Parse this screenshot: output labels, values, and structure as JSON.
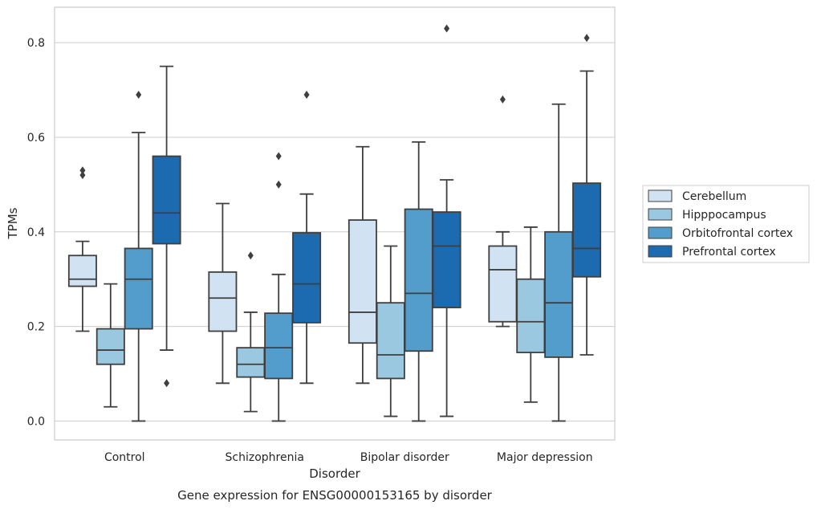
{
  "chart_data": {
    "type": "box",
    "caption": "Gene expression for ENSG00000153165 by disorder",
    "xlabel": "Disorder",
    "ylabel": "TPMs",
    "ylim": [
      -0.04,
      0.875
    ],
    "yticks": [
      "0.0",
      "0.2",
      "0.4",
      "0.6",
      "0.8"
    ],
    "grid": true,
    "legend_position": "right",
    "categories": [
      "Control",
      "Schizophrenia",
      "Bipolar disorder",
      "Major depression"
    ],
    "series": [
      {
        "name": "Cerebellum",
        "color": "#d1e2f2",
        "boxes": [
          {
            "whisker_low": 0.19,
            "q1": 0.285,
            "median": 0.3,
            "q3": 0.35,
            "whisker_high": 0.38,
            "outliers": [
              0.52,
              0.53
            ]
          },
          {
            "whisker_low": 0.08,
            "q1": 0.19,
            "median": 0.26,
            "q3": 0.315,
            "whisker_high": 0.46,
            "outliers": []
          },
          {
            "whisker_low": 0.08,
            "q1": 0.165,
            "median": 0.23,
            "q3": 0.425,
            "whisker_high": 0.58,
            "outliers": []
          },
          {
            "whisker_low": 0.2,
            "q1": 0.21,
            "median": 0.32,
            "q3": 0.37,
            "whisker_high": 0.4,
            "outliers": [
              0.68
            ]
          }
        ]
      },
      {
        "name": "Hipppocampus",
        "color": "#9ac8e0",
        "boxes": [
          {
            "whisker_low": 0.03,
            "q1": 0.12,
            "median": 0.15,
            "q3": 0.195,
            "whisker_high": 0.29,
            "outliers": []
          },
          {
            "whisker_low": 0.02,
            "q1": 0.093,
            "median": 0.12,
            "q3": 0.155,
            "whisker_high": 0.23,
            "outliers": [
              0.35
            ]
          },
          {
            "whisker_low": 0.01,
            "q1": 0.09,
            "median": 0.14,
            "q3": 0.25,
            "whisker_high": 0.37,
            "outliers": []
          },
          {
            "whisker_low": 0.04,
            "q1": 0.145,
            "median": 0.21,
            "q3": 0.3,
            "whisker_high": 0.41,
            "outliers": []
          }
        ]
      },
      {
        "name": "Orbitofrontal cortex",
        "color": "#529dcc",
        "boxes": [
          {
            "whisker_low": 0.0,
            "q1": 0.195,
            "median": 0.3,
            "q3": 0.365,
            "whisker_high": 0.61,
            "outliers": [
              0.69
            ]
          },
          {
            "whisker_low": 0.0,
            "q1": 0.09,
            "median": 0.155,
            "q3": 0.228,
            "whisker_high": 0.31,
            "outliers": [
              0.5,
              0.56
            ]
          },
          {
            "whisker_low": 0.0,
            "q1": 0.148,
            "median": 0.27,
            "q3": 0.448,
            "whisker_high": 0.59,
            "outliers": []
          },
          {
            "whisker_low": 0.0,
            "q1": 0.135,
            "median": 0.25,
            "q3": 0.4,
            "whisker_high": 0.67,
            "outliers": []
          }
        ]
      },
      {
        "name": "Prefrontal cortex",
        "color": "#1c6aaf",
        "boxes": [
          {
            "whisker_low": 0.15,
            "q1": 0.375,
            "median": 0.44,
            "q3": 0.56,
            "whisker_high": 0.75,
            "outliers": [
              0.08
            ]
          },
          {
            "whisker_low": 0.08,
            "q1": 0.208,
            "median": 0.29,
            "q3": 0.398,
            "whisker_high": 0.48,
            "outliers": [
              0.69
            ]
          },
          {
            "whisker_low": 0.01,
            "q1": 0.24,
            "median": 0.37,
            "q3": 0.442,
            "whisker_high": 0.51,
            "outliers": [
              0.83
            ]
          },
          {
            "whisker_low": 0.14,
            "q1": 0.305,
            "median": 0.365,
            "q3": 0.503,
            "whisker_high": 0.74,
            "outliers": [
              0.81
            ]
          }
        ]
      }
    ]
  }
}
